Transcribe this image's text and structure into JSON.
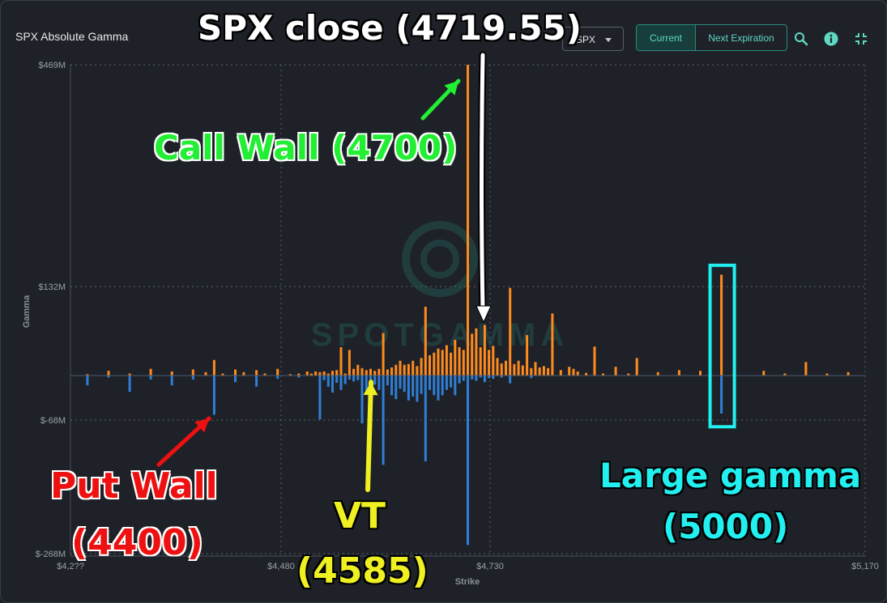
{
  "header": {
    "title": "SPX Absolute Gamma",
    "symbol_select": "SPX",
    "btn_current": "Current",
    "btn_next": "Next Expiration"
  },
  "watermark": "SPOTGAMMA",
  "annotations": {
    "spx_close": "SPX close (4719.55)",
    "call_wall": "Call Wall (4700)",
    "put_wall_1": "Put Wall",
    "put_wall_2": "(4400)",
    "vt_1": "VT",
    "vt_2": "(4585)",
    "large_1": "Large gamma",
    "large_2": "(5000)"
  },
  "colors": {
    "call": "#ff8a1e",
    "put": "#2f7fd6",
    "background": "#1e2127",
    "accent": "#5fd9c4",
    "spx_close_text": "#ffffff",
    "call_wall_text": "#22ee33",
    "put_wall_text": "#ee1111",
    "vt_text": "#eef022",
    "large_gamma_text": "#22f0f0"
  },
  "icons": {
    "search": "search-icon",
    "info": "info-icon",
    "collapse": "collapse-icon"
  },
  "chart_data": {
    "type": "bar",
    "title": "SPX Absolute Gamma",
    "xlabel": "Strike",
    "ylabel": "Gamma",
    "x_ticks": [
      "$4,2??",
      "$4,480",
      "$4,730",
      "$5,170"
    ],
    "y_ticks": [
      "$469M",
      "$132M",
      "$-68M",
      "$-268M"
    ],
    "xlim": [
      4230,
      5170
    ],
    "ylim": [
      -268,
      469
    ],
    "grid": true,
    "series": [
      {
        "name": "call",
        "values": [
          [
            4250,
            2
          ],
          [
            4275,
            7
          ],
          [
            4300,
            3
          ],
          [
            4325,
            10
          ],
          [
            4350,
            6
          ],
          [
            4375,
            9
          ],
          [
            4390,
            5
          ],
          [
            4400,
            23
          ],
          [
            4410,
            3
          ],
          [
            4425,
            9
          ],
          [
            4435,
            5
          ],
          [
            4450,
            8
          ],
          [
            4460,
            3
          ],
          [
            4475,
            10
          ],
          [
            4490,
            2
          ],
          [
            4500,
            3
          ],
          [
            4510,
            6
          ],
          [
            4515,
            3
          ],
          [
            4520,
            6
          ],
          [
            4525,
            5
          ],
          [
            4530,
            6
          ],
          [
            4535,
            3
          ],
          [
            4540,
            7
          ],
          [
            4545,
            8
          ],
          [
            4550,
            42
          ],
          [
            4555,
            3
          ],
          [
            4560,
            38
          ],
          [
            4565,
            10
          ],
          [
            4570,
            16
          ],
          [
            4575,
            11
          ],
          [
            4580,
            8
          ],
          [
            4585,
            10
          ],
          [
            4590,
            7
          ],
          [
            4595,
            10
          ],
          [
            4600,
            63
          ],
          [
            4605,
            9
          ],
          [
            4610,
            12
          ],
          [
            4615,
            16
          ],
          [
            4620,
            22
          ],
          [
            4625,
            16
          ],
          [
            4630,
            17
          ],
          [
            4635,
            22
          ],
          [
            4640,
            14
          ],
          [
            4645,
            26
          ],
          [
            4650,
            102
          ],
          [
            4655,
            30
          ],
          [
            4660,
            34
          ],
          [
            4665,
            40
          ],
          [
            4670,
            38
          ],
          [
            4675,
            45
          ],
          [
            4680,
            34
          ],
          [
            4685,
            53
          ],
          [
            4690,
            42
          ],
          [
            4695,
            38
          ],
          [
            4700,
            469
          ],
          [
            4705,
            62
          ],
          [
            4710,
            70
          ],
          [
            4715,
            42
          ],
          [
            4720,
            75
          ],
          [
            4725,
            38
          ],
          [
            4730,
            44
          ],
          [
            4735,
            26
          ],
          [
            4740,
            18
          ],
          [
            4745,
            22
          ],
          [
            4750,
            130
          ],
          [
            4755,
            17
          ],
          [
            4760,
            22
          ],
          [
            4765,
            15
          ],
          [
            4770,
            60
          ],
          [
            4775,
            11
          ],
          [
            4780,
            20
          ],
          [
            4785,
            12
          ],
          [
            4790,
            14
          ],
          [
            4795,
            11
          ],
          [
            4800,
            92
          ],
          [
            4810,
            8
          ],
          [
            4820,
            13
          ],
          [
            4825,
            10
          ],
          [
            4830,
            6
          ],
          [
            4840,
            4
          ],
          [
            4850,
            43
          ],
          [
            4860,
            3
          ],
          [
            4875,
            13
          ],
          [
            4890,
            3
          ],
          [
            4900,
            26
          ],
          [
            4925,
            5
          ],
          [
            4950,
            8
          ],
          [
            4975,
            7
          ],
          [
            5000,
            150
          ],
          [
            5050,
            7
          ],
          [
            5075,
            3
          ],
          [
            5100,
            20
          ],
          [
            5125,
            3
          ],
          [
            5150,
            5
          ]
        ]
      },
      {
        "name": "put",
        "values": [
          [
            4250,
            -15
          ],
          [
            4275,
            -3
          ],
          [
            4300,
            -25
          ],
          [
            4325,
            -6
          ],
          [
            4350,
            -15
          ],
          [
            4375,
            -6
          ],
          [
            4400,
            -60
          ],
          [
            4425,
            -10
          ],
          [
            4450,
            -17
          ],
          [
            4475,
            -5
          ],
          [
            4500,
            -3
          ],
          [
            4525,
            -67
          ],
          [
            4530,
            -7
          ],
          [
            4535,
            -17
          ],
          [
            4540,
            -26
          ],
          [
            4545,
            -11
          ],
          [
            4550,
            -22
          ],
          [
            4555,
            -13
          ],
          [
            4560,
            -6
          ],
          [
            4565,
            -9
          ],
          [
            4570,
            -7
          ],
          [
            4575,
            -73
          ],
          [
            4580,
            -24
          ],
          [
            4585,
            -18
          ],
          [
            4590,
            -14
          ],
          [
            4595,
            -22
          ],
          [
            4600,
            -135
          ],
          [
            4605,
            -15
          ],
          [
            4610,
            -30
          ],
          [
            4615,
            -36
          ],
          [
            4620,
            -20
          ],
          [
            4625,
            -25
          ],
          [
            4630,
            -38
          ],
          [
            4635,
            -32
          ],
          [
            4640,
            -40
          ],
          [
            4645,
            -28
          ],
          [
            4650,
            -130
          ],
          [
            4655,
            -22
          ],
          [
            4660,
            -30
          ],
          [
            4665,
            -38
          ],
          [
            4670,
            -30
          ],
          [
            4675,
            -22
          ],
          [
            4680,
            -18
          ],
          [
            4685,
            -30
          ],
          [
            4690,
            -12
          ],
          [
            4695,
            -8
          ],
          [
            4700,
            -255
          ],
          [
            4705,
            -6
          ],
          [
            4710,
            -8
          ],
          [
            4715,
            -3
          ],
          [
            4720,
            -10
          ],
          [
            4725,
            -4
          ],
          [
            4730,
            -5
          ],
          [
            4740,
            -3
          ],
          [
            4750,
            -12
          ],
          [
            4775,
            -4
          ],
          [
            5000,
            -58
          ]
        ]
      }
    ]
  }
}
